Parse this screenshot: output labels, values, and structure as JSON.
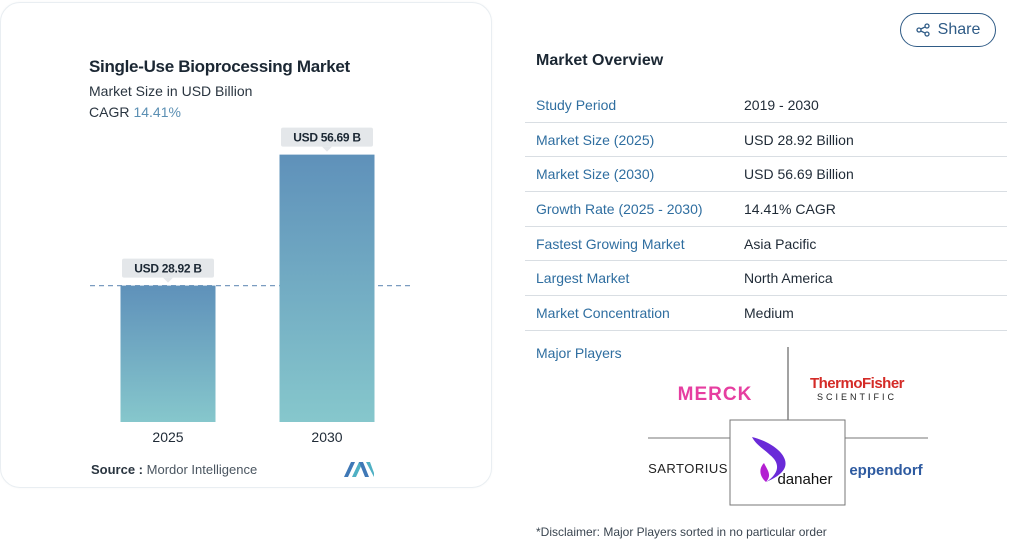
{
  "chart_data": {
    "type": "bar",
    "title": "Single-Use Bioprocessing Market",
    "subtitle": "Market Size in USD Billion",
    "cagr_label": "CAGR",
    "cagr_value": "14.41%",
    "categories": [
      "2025",
      "2030"
    ],
    "values": [
      28.92,
      56.69
    ],
    "data_labels": [
      "USD 28.92 B",
      "USD 56.69 B"
    ],
    "ylim": [
      0,
      60
    ],
    "reference_line": 28.92,
    "colors": {
      "bar_top": "#5f91ba",
      "bar_bottom": "#86c7cc",
      "dash": "#7a9cc0",
      "label_bg": "#e4e7ea"
    }
  },
  "source": {
    "label": "Source :",
    "name": "Mordor Intelligence"
  },
  "share": {
    "label": "Share"
  },
  "overview": {
    "title": "Market Overview",
    "rows": [
      {
        "key": "Study Period",
        "value": "2019 - 2030"
      },
      {
        "key": "Market Size (2025)",
        "value": "USD 28.92 Billion"
      },
      {
        "key": "Market Size (2030)",
        "value": "USD 56.69 Billion"
      },
      {
        "key": "Growth Rate (2025 - 2030)",
        "value": "14.41% CAGR"
      },
      {
        "key": "Fastest Growing Market",
        "value": "Asia Pacific"
      },
      {
        "key": "Largest Market",
        "value": "North America"
      },
      {
        "key": "Market Concentration",
        "value": "Medium"
      }
    ],
    "major_players_label": "Major Players",
    "players": [
      "MERCK",
      "ThermoFisher",
      "SCIENTIFIC",
      "SARTORIUS",
      "danaher",
      "eppendorf"
    ],
    "disclaimer": "*Disclaimer: Major Players sorted in no particular order"
  }
}
